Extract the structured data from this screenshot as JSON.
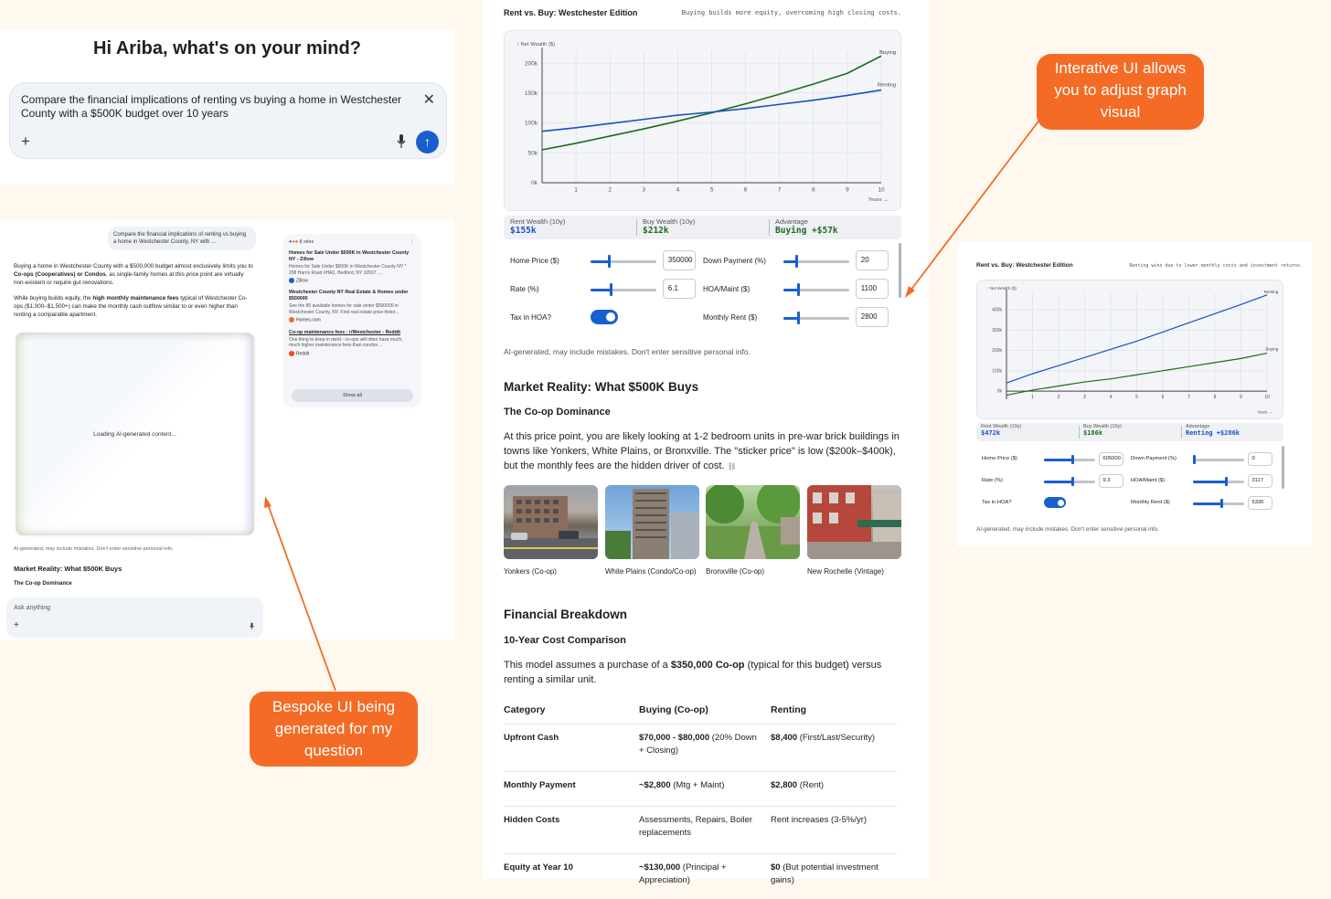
{
  "panel1": {
    "greeting": "Hi Ariba, what's on your mind?",
    "query": "Compare the financial implications of renting vs buying a home in Westchester County with a $500K budget over 10 years",
    "close_icon": "close-icon",
    "plus": "+",
    "send": "↑"
  },
  "panel2": {
    "user_bubble": "Compare the financial implications of renting vs buying a home in Westchester County, NY with ...",
    "para1_a": "Buying a home in Westchester County with a $500,000 budget almost exclusively limits you to ",
    "para1_b": "Co-ops (Cooperatives) or Condos",
    "para1_c": ", as single-family homes at this price point are virtually non-existent or require gut renovations.",
    "para2_a": "While buying builds equity, the ",
    "para2_b": "high monthly maintenance fees",
    "para2_c": " typical of Westchester Co-ops ($1,000–$1,500+) can make the monthly cash outflow similar to or even higher than renting a comparable apartment.",
    "loading": "Loading AI-generated content...",
    "disclaimer": "AI-generated, may include mistakes. Don't enter sensitive personal info.",
    "heading": "Market Reality: What $500K Buys",
    "subheading": "The Co-op Dominance",
    "ask_placeholder": "Ask anything",
    "ask_plus": "+",
    "sources": {
      "count_label": "8 sites",
      "items": [
        {
          "title": "Homes for Sale Under $500K in Westchester County NY - Zillow",
          "snippet": "Homes for Sale Under $500K in Westchester County NY * 208 Harris Road #HA3, Bedford, NY 10507. ...",
          "site": "Zillow",
          "color": "#1a5fd0"
        },
        {
          "title": "Westchester County NY Real Estate & Homes under $500000",
          "snippet": "See the 85 available homes for sale under $500000 in Westchester County, NY. Find real estate price histor...",
          "site": "Homes.com",
          "color": "#f46b25"
        },
        {
          "title": "Co-op maintenance fees : r/Westchester - Reddit",
          "snippet": "One thing to keep in mind - co-ops will often have much, much higher maintenance fees than condos....",
          "site": "Reddit",
          "color": "#ff4500"
        }
      ],
      "show_all": "Show all"
    }
  },
  "panel3": {
    "title": "Rent vs. Buy: Westchester Edition",
    "subtitle": "Buying builds more equity, overcoming high closing costs.",
    "stats": {
      "rent_label": "Rent Wealth (10y)",
      "rent_value": "$155k",
      "buy_label": "Buy Wealth (10y)",
      "buy_value": "$212k",
      "adv_label": "Advantage",
      "adv_value": "Buying +$57k"
    },
    "controls": {
      "home_price_label": "Home Price ($)",
      "home_price_value": "350000",
      "home_price_frac": 0.28,
      "down_label": "Down Payment (%)",
      "down_value": "20",
      "down_frac": 0.2,
      "rate_label": "Rate (%)",
      "rate_value": "6.1",
      "rate_frac": 0.3,
      "hoa_label": "HOA/Maint ($)",
      "hoa_value": "1100",
      "hoa_frac": 0.22,
      "tax_label": "Tax in HOA?",
      "rent_label": "Monthly Rent ($)",
      "rent_value": "2800",
      "rent_frac": 0.22
    },
    "disclaimer": "AI-generated, may include mistakes. Don't enter sensitive personal info.",
    "market_heading": "Market Reality: What $500K Buys",
    "coop_heading": "The Co-op Dominance",
    "coop_para": "At this price point, you are likely looking at 1-2 bedroom units in pre-war brick buildings in towns like Yonkers, White Plains, or Bronxville. The \"sticker price\" is low ($200k–$400k), but the monthly fees are the hidden driver of cost.",
    "photos": [
      {
        "caption": "Yonkers (Co-op)"
      },
      {
        "caption": "White Plains (Condo/Co-op)"
      },
      {
        "caption": "Bronxville (Co-op)"
      },
      {
        "caption": "New Rochelle (Vintage)"
      }
    ],
    "fin_heading": "Financial Breakdown",
    "cost_heading": "10-Year Cost Comparison",
    "model_a": "This model assumes a purchase of a ",
    "model_b": "$350,000 Co-op",
    "model_c": " (typical for this budget) versus renting a similar unit.",
    "table": {
      "headers": [
        "Category",
        "Buying (Co-op)",
        "Renting"
      ],
      "rows": [
        {
          "cat": "Upfront Cash",
          "buy_b": "$70,000 - $80,000",
          "buy_r": " (20% Down + Closing)",
          "rent_b": "$8,400",
          "rent_r": " (First/Last/Security)"
        },
        {
          "cat": "Monthly Payment",
          "buy_b": "~$2,800",
          "buy_r": " (Mtg + Maint)",
          "rent_b": "$2,800",
          "rent_r": " (Rent)"
        },
        {
          "cat": "Hidden Costs",
          "buy_b": "",
          "buy_r": "Assessments, Repairs, Boiler replacements",
          "rent_b": "",
          "rent_r": "Rent increases (3-5%/yr)"
        },
        {
          "cat": "Equity at Year 10",
          "buy_b": "~$130,000",
          "buy_r": " (Principal + Appreciation)",
          "rent_b": "$0",
          "rent_r": " (But potential investment gains)"
        }
      ]
    }
  },
  "panel4": {
    "title": "Rent vs. Buy: Westchester Edition",
    "subtitle": "Renting wins due to lower monthly costs and investment returns.",
    "stats": {
      "rent_label": "Rent Wealth (10y)",
      "rent_value": "$472k",
      "buy_label": "Buy Wealth (10y)",
      "buy_value": "$186k",
      "adv_label": "Advantage",
      "adv_value": "Renting +$286k"
    },
    "controls": {
      "home_price_label": "Home Price ($)",
      "home_price_value": "605000",
      "home_price_frac": 0.55,
      "down_label": "Down Payment (%)",
      "down_value": "0",
      "down_frac": 0.02,
      "rate_label": "Rate (%)",
      "rate_value": "9.3",
      "rate_frac": 0.55,
      "hoa_label": "HOA/Maint ($)",
      "hoa_value": "3117",
      "hoa_frac": 0.65,
      "tax_label": "Tax in HOA?",
      "rent_label": "Monthly Rent ($)",
      "rent_value": "5330",
      "rent_frac": 0.55
    },
    "disclaimer": "AI-generated, may include mistakes. Don't enter sensitive personal info."
  },
  "callouts": {
    "interactive": "Interative UI allows you to adjust graph visual",
    "bespoke": "Bespoke UI being generated for my question"
  },
  "chart_data": [
    {
      "type": "line",
      "title": "Rent vs. Buy: Westchester Edition",
      "xlabel": "Years →",
      "ylabel": "↑ Net Wealth ($)",
      "x": [
        0,
        1,
        2,
        3,
        4,
        5,
        6,
        7,
        8,
        9,
        10
      ],
      "xticks": [
        1,
        2,
        3,
        4,
        5,
        6,
        7,
        8,
        9,
        10
      ],
      "yticks": [
        "0k",
        "50k",
        "100k",
        "150k",
        "200k"
      ],
      "ytick_values": [
        0,
        50,
        100,
        150,
        200
      ],
      "ylim": [
        0,
        220
      ],
      "grid": true,
      "series": [
        {
          "name": "Buying",
          "color": "#1e6a1e",
          "values": [
            55,
            66,
            78,
            90,
            103,
            117,
            132,
            148,
            165,
            183,
            212
          ]
        },
        {
          "name": "Renting",
          "color": "#1a4fc6",
          "values": [
            86,
            92,
            99,
            106,
            113,
            118,
            124,
            131,
            138,
            146,
            155
          ]
        }
      ]
    },
    {
      "type": "line",
      "title": "Rent vs. Buy: Westchester Edition",
      "xlabel": "Years →",
      "ylabel": "↑ Net Wealth ($)",
      "x": [
        0,
        1,
        2,
        3,
        4,
        5,
        6,
        7,
        8,
        9,
        10
      ],
      "xticks": [
        1,
        2,
        3,
        4,
        5,
        6,
        7,
        8,
        9,
        10
      ],
      "yticks": [
        "0k",
        "100k",
        "200k",
        "300k",
        "400k"
      ],
      "ytick_values": [
        0,
        100,
        200,
        300,
        400
      ],
      "ylim": [
        -40,
        480
      ],
      "grid": true,
      "series": [
        {
          "name": "Renting",
          "color": "#1a4fc6",
          "values": [
            40,
            85,
            125,
            165,
            205,
            245,
            290,
            335,
            380,
            425,
            472
          ]
        },
        {
          "name": "Buying",
          "color": "#1e6a1e",
          "values": [
            -20,
            5,
            25,
            45,
            60,
            80,
            100,
            120,
            140,
            160,
            186
          ]
        }
      ]
    }
  ]
}
